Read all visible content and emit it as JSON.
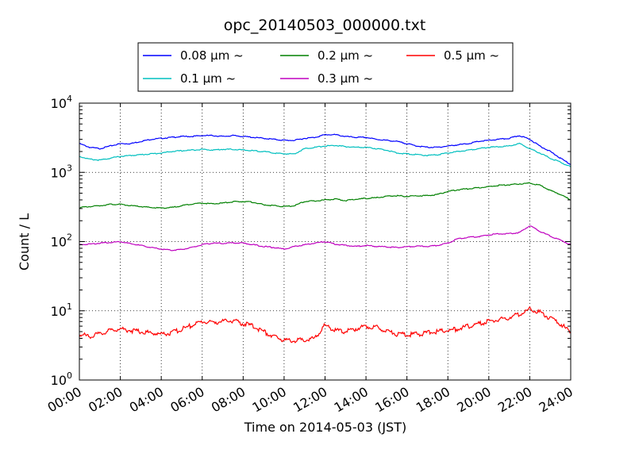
{
  "chart_data": {
    "type": "line",
    "title": "opc_20140503_000000.txt",
    "xlabel": "Time on 2014-05-03 (JST)",
    "ylabel": "Count / L",
    "y_scale": "log",
    "ylim": [
      1,
      10000
    ],
    "xlim": [
      "00:00",
      "24:00"
    ],
    "x_ticks": [
      "00:00",
      "02:00",
      "04:00",
      "06:00",
      "08:00",
      "10:00",
      "12:00",
      "14:00",
      "16:00",
      "18:00",
      "20:00",
      "22:00",
      "24:00"
    ],
    "y_ticks": [
      {
        "base": "10",
        "exp": "0"
      },
      {
        "base": "10",
        "exp": "1"
      },
      {
        "base": "10",
        "exp": "2"
      },
      {
        "base": "10",
        "exp": "3"
      },
      {
        "base": "10",
        "exp": "4"
      }
    ],
    "grid": true,
    "legend_position": "top",
    "x_hours": [
      0,
      0.5,
      1,
      1.5,
      2,
      2.5,
      3,
      3.5,
      4,
      4.5,
      5,
      5.5,
      6,
      6.5,
      7,
      7.5,
      8,
      8.5,
      9,
      9.5,
      10,
      10.5,
      11,
      11.5,
      12,
      12.5,
      13,
      13.5,
      14,
      14.5,
      15,
      15.5,
      16,
      16.5,
      17,
      17.5,
      18,
      18.5,
      19,
      19.5,
      20,
      20.5,
      21,
      21.5,
      22,
      22.5,
      23,
      23.5,
      24
    ],
    "series": [
      {
        "name": "0.08 µm ~",
        "color": "#0000ff",
        "values": [
          2600,
          2300,
          2200,
          2400,
          2600,
          2600,
          2800,
          3000,
          3100,
          3200,
          3300,
          3300,
          3400,
          3400,
          3300,
          3400,
          3300,
          3200,
          3100,
          3000,
          2900,
          2900,
          3100,
          3200,
          3500,
          3500,
          3300,
          3200,
          3200,
          3000,
          2900,
          2800,
          2600,
          2400,
          2300,
          2300,
          2400,
          2500,
          2600,
          2800,
          2900,
          3000,
          3100,
          3400,
          3000,
          2400,
          2000,
          1600,
          1300
        ]
      },
      {
        "name": "0.1 µm ~",
        "color": "#00bfbf",
        "values": [
          1700,
          1550,
          1500,
          1600,
          1700,
          1750,
          1800,
          1850,
          1900,
          2000,
          2050,
          2100,
          2150,
          2100,
          2150,
          2150,
          2100,
          2050,
          2000,
          1900,
          1850,
          1850,
          2200,
          2300,
          2400,
          2450,
          2350,
          2300,
          2300,
          2200,
          2100,
          1900,
          1850,
          1800,
          1750,
          1800,
          1900,
          2000,
          2100,
          2200,
          2300,
          2350,
          2400,
          2600,
          2200,
          1900,
          1600,
          1400,
          1200
        ]
      },
      {
        "name": "0.2 µm ~",
        "color": "#008000",
        "values": [
          310,
          320,
          330,
          345,
          345,
          330,
          320,
          310,
          305,
          310,
          330,
          350,
          360,
          350,
          360,
          375,
          380,
          370,
          340,
          330,
          320,
          330,
          380,
          385,
          400,
          410,
          390,
          410,
          420,
          430,
          450,
          460,
          450,
          460,
          460,
          480,
          530,
          560,
          580,
          600,
          620,
          650,
          660,
          680,
          700,
          650,
          550,
          480,
          400
        ]
      },
      {
        "name": "0.3 µm ~",
        "color": "#bf00bf",
        "values": [
          90,
          92,
          95,
          97,
          100,
          93,
          88,
          82,
          78,
          75,
          77,
          82,
          90,
          95,
          94,
          96,
          95,
          90,
          85,
          82,
          78,
          85,
          90,
          95,
          100,
          92,
          88,
          85,
          88,
          85,
          84,
          82,
          84,
          86,
          85,
          88,
          95,
          110,
          115,
          118,
          125,
          130,
          130,
          135,
          170,
          140,
          120,
          105,
          90
        ]
      },
      {
        "name": "0.5 µm ~",
        "color": "#ff0000",
        "values": [
          4.5,
          4.3,
          4.6,
          5.2,
          5.5,
          5.2,
          5.0,
          4.8,
          4.6,
          4.8,
          5.4,
          6.2,
          7.0,
          6.8,
          7.0,
          7.2,
          6.5,
          6.0,
          5.0,
          4.2,
          3.8,
          3.7,
          3.8,
          4.0,
          6.2,
          5.2,
          5.0,
          5.5,
          6.0,
          5.8,
          5.2,
          4.6,
          4.5,
          4.6,
          4.8,
          5.0,
          5.2,
          5.5,
          6.0,
          6.5,
          7.0,
          7.5,
          8.0,
          9.0,
          10.5,
          9.5,
          7.8,
          6.5,
          4.8
        ]
      }
    ]
  }
}
